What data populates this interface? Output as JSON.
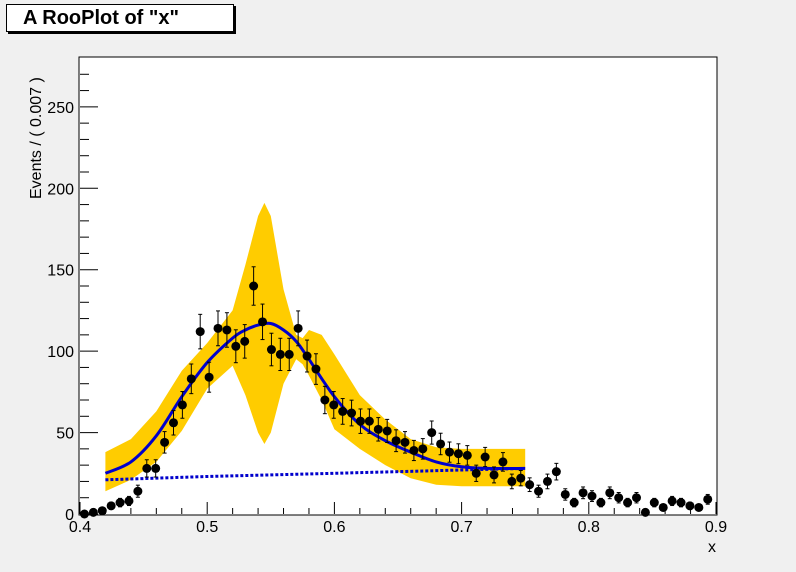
{
  "chart_data": {
    "type": "scatter",
    "title": "A RooPlot of \"x\"",
    "xlabel": "x",
    "ylabel": "Events / ( 0.007 )",
    "xlim": [
      0.4,
      0.9
    ],
    "ylim": [
      0,
      280
    ],
    "xticks": [
      0.4,
      0.5,
      0.6,
      0.7,
      0.8,
      0.9
    ],
    "xtick_labels": [
      "0.4",
      "0.5",
      "0.6",
      "0.7",
      "0.8",
      "0.9"
    ],
    "yticks": [
      0,
      50,
      100,
      150,
      200,
      250
    ],
    "ytick_labels": [
      "0",
      "50",
      "100",
      "150",
      "200",
      "250"
    ],
    "grid": false,
    "colors": {
      "band": "#ffcc00",
      "fit": "#0000cc",
      "points": "#000000",
      "frame_bg": "#ffffff",
      "canvas_bg": "#f0f0f0"
    },
    "series": [
      {
        "role": "data points with error bars",
        "x": [
          0.4035,
          0.4105,
          0.4175,
          0.4245,
          0.4315,
          0.4385,
          0.4455,
          0.4525,
          0.4595,
          0.4665,
          0.4735,
          0.4805,
          0.4875,
          0.4945,
          0.5015,
          0.5085,
          0.5155,
          0.5225,
          0.5295,
          0.5365,
          0.5435,
          0.5505,
          0.5575,
          0.5645,
          0.5715,
          0.5785,
          0.5855,
          0.5925,
          0.5995,
          0.6065,
          0.6135,
          0.6205,
          0.6275,
          0.6345,
          0.6415,
          0.6485,
          0.6555,
          0.6625,
          0.6695,
          0.6765,
          0.6835,
          0.6905,
          0.6975,
          0.7045,
          0.7115,
          0.7185,
          0.7255,
          0.7325,
          0.7395,
          0.7465,
          0.7535,
          0.7605,
          0.7675,
          0.7745,
          0.7815,
          0.7885,
          0.7955,
          0.8025,
          0.8095,
          0.8165,
          0.8235,
          0.8305,
          0.8375,
          0.8445,
          0.8515,
          0.8585,
          0.8655,
          0.8725,
          0.8795,
          0.8865,
          0.8935
        ],
        "y": [
          0,
          1,
          2,
          5,
          7,
          8,
          14,
          28,
          28,
          44,
          56,
          67,
          83,
          112,
          84,
          114,
          113,
          103,
          106,
          140,
          118,
          101,
          98,
          98,
          114,
          97,
          89,
          70,
          67,
          63,
          62,
          57,
          57,
          52,
          51,
          45,
          44,
          39,
          40,
          50,
          43,
          38,
          37,
          36,
          25,
          35,
          24,
          32,
          20,
          22,
          18,
          14,
          20,
          26,
          12,
          7,
          13,
          11,
          7,
          13,
          10,
          7,
          10,
          1,
          7,
          4,
          8,
          7,
          5,
          4,
          9
        ],
        "err": [
          1,
          1,
          1.4,
          2.2,
          2.6,
          2.8,
          3.7,
          5.3,
          5.3,
          6.6,
          7.5,
          8.2,
          9.1,
          10.6,
          9.2,
          10.7,
          10.6,
          10.1,
          10.3,
          11.8,
          10.9,
          10,
          9.9,
          9.9,
          10.7,
          9.8,
          9.4,
          8.4,
          8.2,
          7.9,
          7.9,
          7.5,
          7.5,
          7.2,
          7.1,
          6.7,
          6.6,
          6.2,
          6.3,
          7.1,
          6.6,
          6.2,
          6.1,
          6,
          5,
          5.9,
          4.9,
          5.7,
          4.5,
          4.7,
          4.2,
          3.7,
          4.5,
          5.1,
          3.5,
          2.6,
          3.6,
          3.3,
          2.6,
          3.6,
          3.2,
          2.6,
          3.2,
          1,
          2.6,
          2,
          2.8,
          2.6,
          2.2,
          2,
          3
        ]
      },
      {
        "role": "total fit (solid line)",
        "x": [
          0.42,
          0.44,
          0.46,
          0.48,
          0.5,
          0.52,
          0.53,
          0.54,
          0.55,
          0.56,
          0.57,
          0.58,
          0.6,
          0.62,
          0.64,
          0.66,
          0.68,
          0.7,
          0.72,
          0.75
        ],
        "y": [
          25,
          32,
          48,
          72,
          93,
          108,
          113,
          116,
          117,
          113,
          106,
          95,
          72,
          55,
          45,
          38,
          32,
          29,
          28,
          28
        ]
      },
      {
        "role": "background component (dashed line)",
        "x": [
          0.42,
          0.5,
          0.6,
          0.7,
          0.75
        ],
        "y": [
          21,
          23,
          25,
          27,
          28
        ]
      },
      {
        "role": "error band",
        "x": [
          0.42,
          0.44,
          0.46,
          0.48,
          0.5,
          0.52,
          0.53,
          0.54,
          0.545,
          0.55,
          0.56,
          0.57,
          0.575,
          0.58,
          0.59,
          0.6,
          0.62,
          0.64,
          0.66,
          0.68,
          0.7,
          0.72,
          0.75
        ],
        "upper": [
          38,
          46,
          63,
          88,
          105,
          125,
          153,
          183,
          191,
          183,
          138,
          110,
          108,
          113,
          110,
          98,
          73,
          58,
          46,
          41,
          40,
          40,
          40
        ],
        "lower": [
          14,
          21,
          32,
          51,
          77,
          91,
          73,
          50,
          43,
          50,
          80,
          95,
          92,
          85,
          70,
          52,
          40,
          30,
          22,
          18,
          17,
          17,
          17
        ]
      }
    ]
  }
}
